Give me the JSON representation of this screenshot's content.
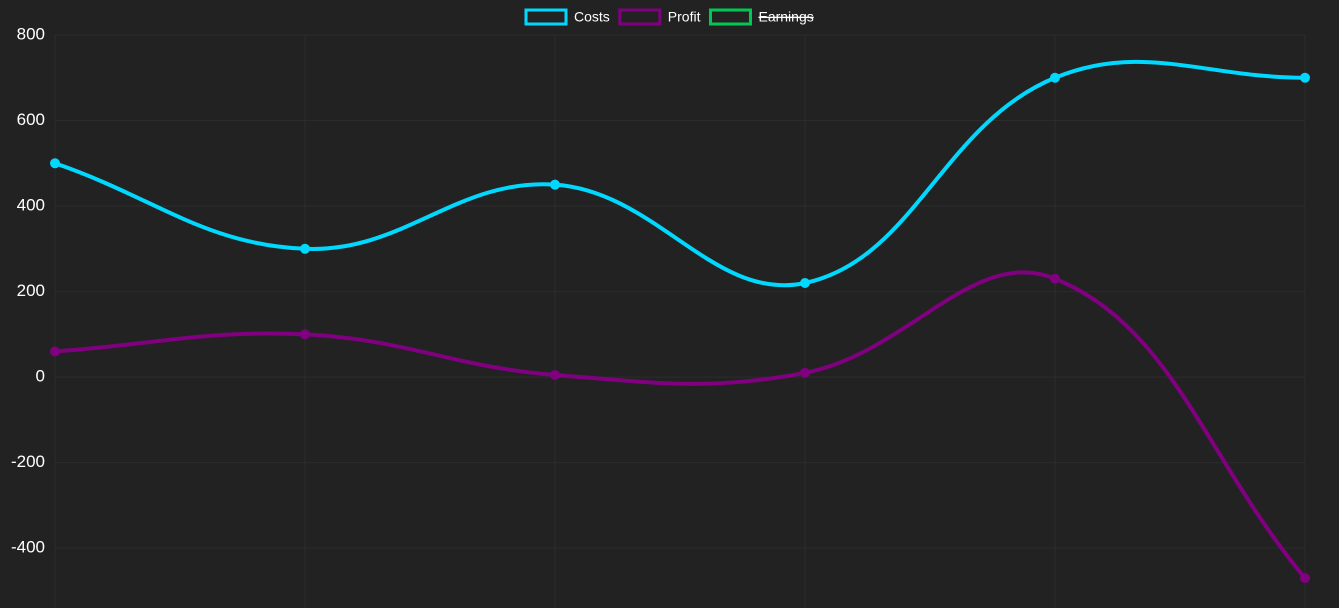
{
  "chart_data": {
    "type": "line",
    "categories": [
      null,
      null,
      null,
      null,
      null,
      null
    ],
    "series": [
      {
        "name": "Costs",
        "color": "#00d8ff",
        "values": [
          500,
          300,
          450,
          220,
          700,
          700
        ]
      },
      {
        "name": "Profit",
        "color": "#800080",
        "values": [
          60,
          100,
          5,
          10,
          230,
          -470
        ]
      },
      {
        "name": "Earnings",
        "color": "#00c853",
        "hidden": true
      }
    ],
    "ylim": [
      -540,
      800
    ],
    "yticks": [
      -400,
      -200,
      0,
      200,
      400,
      600,
      800
    ],
    "grid": true,
    "legend": "top",
    "smooth": true
  }
}
